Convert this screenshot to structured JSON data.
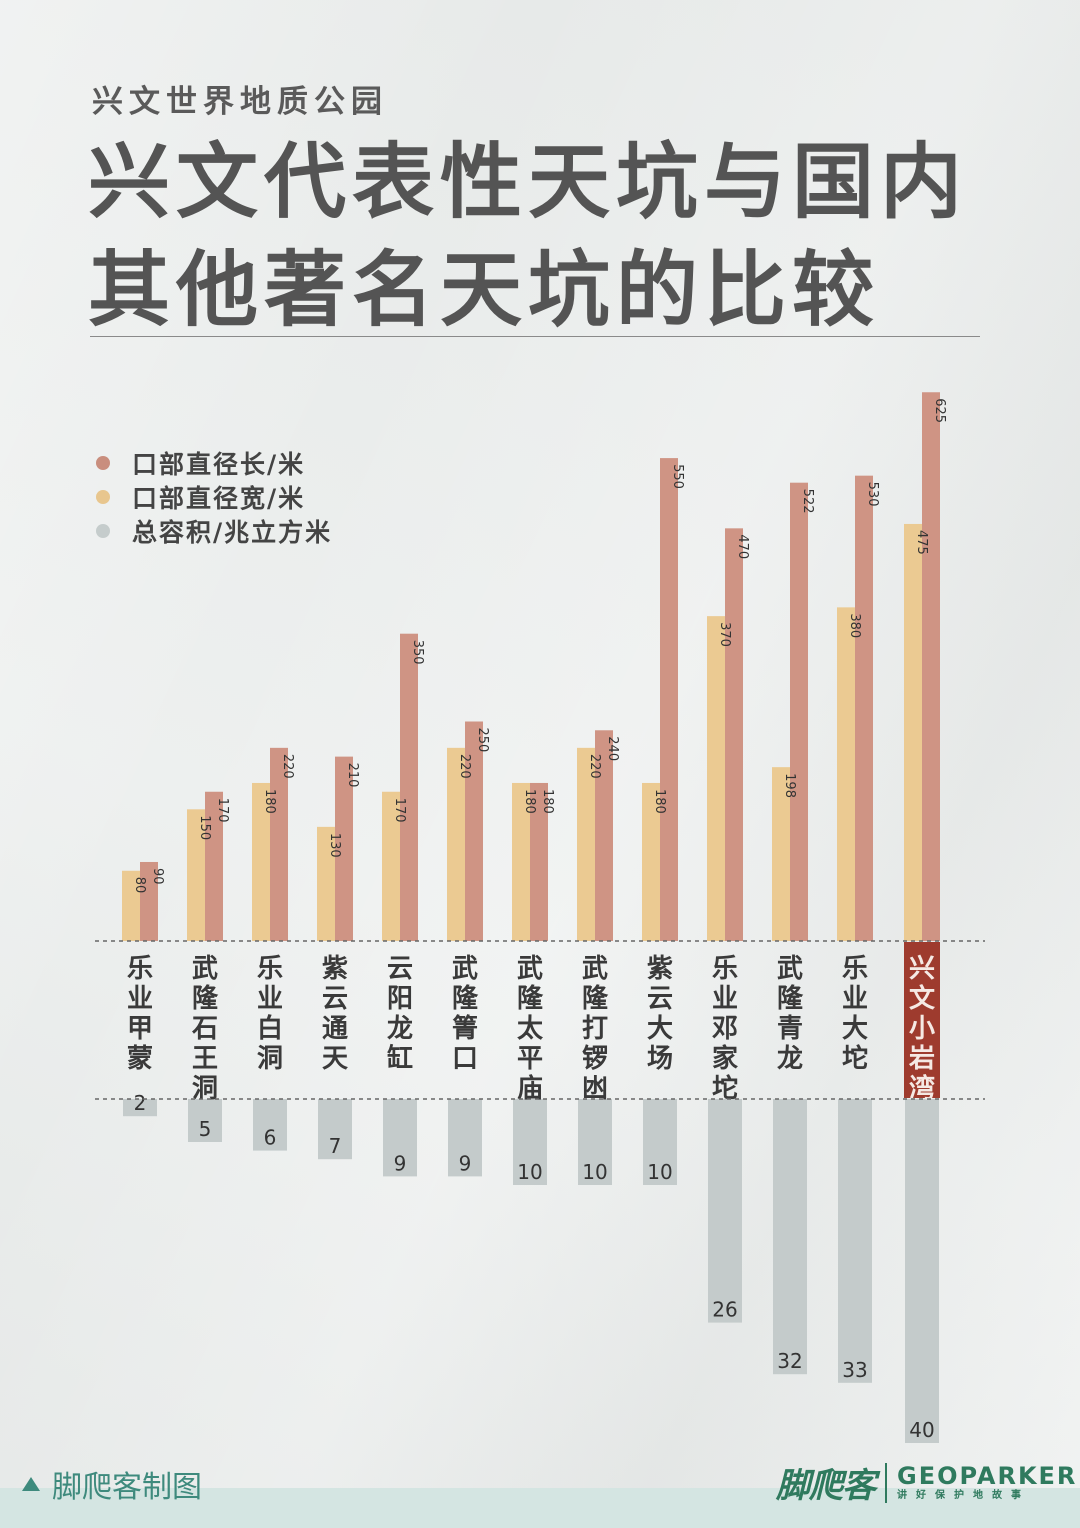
{
  "header": {
    "subtitle": "兴文世界地质公园",
    "title": "兴文代表性天坑与国内其他著名天坑的比较"
  },
  "legend": {
    "items": [
      {
        "label": "口部直径长/米",
        "color": "#c98e7e"
      },
      {
        "label": "口部直径宽/米",
        "color": "#e8c68e"
      },
      {
        "label": "总容积/兆立方米",
        "color": "#c5cccc"
      }
    ]
  },
  "colors": {
    "length": "#cf9484",
    "width": "#ebca92",
    "volume": "#c4cbcb",
    "highlight": "#9e3b2e",
    "dashed": "#666666"
  },
  "chart_data": {
    "type": "bar",
    "categories": [
      "乐业甲蒙",
      "武隆石王洞",
      "乐业白洞",
      "紫云通天",
      "云阳龙缸",
      "武隆箐口",
      "武隆太平庙",
      "武隆打锣凼",
      "紫云大场",
      "乐业邓家坨",
      "武隆青龙",
      "乐业大坨",
      "兴文小岩湾"
    ],
    "highlight_category": "兴文小岩湾",
    "series": [
      {
        "name": "口部直径宽/米",
        "values": [
          80,
          150,
          180,
          130,
          170,
          220,
          180,
          220,
          180,
          370,
          198,
          380,
          475
        ]
      },
      {
        "name": "口部直径长/米",
        "values": [
          90,
          170,
          220,
          210,
          350,
          250,
          180,
          240,
          550,
          470,
          522,
          530,
          625
        ]
      },
      {
        "name": "总容积/兆立方米",
        "values": [
          2,
          5,
          6,
          7,
          9,
          9,
          10,
          10,
          10,
          26,
          32,
          33,
          40
        ]
      }
    ]
  },
  "footer": {
    "brand_left": "脚爬客制图",
    "brand_script": "脚爬客",
    "brand_name": "GEOPARKER",
    "brand_tagline": "讲好保护地故事"
  }
}
